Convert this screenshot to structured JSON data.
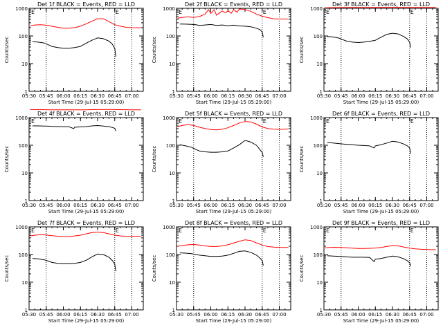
{
  "chart_data": [
    {
      "type": "line",
      "title": "Det 1f BLACK = Events, RED = LLD",
      "ylabel": "Counts/sec",
      "xlabel": "Start Time (29-Jul-15 05:29:00)",
      "yscale": "log",
      "ylim": [
        1,
        1000
      ],
      "ytick_labels": [
        "1",
        "10",
        "100",
        "1000"
      ],
      "xlim": [
        "05:30",
        "07:10"
      ],
      "xtick_labels": [
        "05:30",
        "05:45",
        "06:00",
        "06:15",
        "06:30",
        "06:45",
        "07:00"
      ],
      "marker_label": "E",
      "markers": [
        "05:45",
        "06:45",
        "07:00"
      ],
      "series": [
        {
          "color": "#ff0000",
          "x": [
            "05:31",
            "05:35",
            "05:40",
            "05:45",
            "05:50",
            "05:55",
            "06:00",
            "06:05",
            "06:10",
            "06:15",
            "06:20",
            "06:25",
            "06:30",
            "06:35",
            "06:40",
            "06:45",
            "06:50",
            "06:55",
            "07:00",
            "07:05",
            "07:08"
          ],
          "y": [
            230,
            250,
            255,
            245,
            225,
            205,
            190,
            190,
            200,
            225,
            275,
            340,
            420,
            420,
            330,
            255,
            225,
            205,
            200,
            198,
            198
          ]
        },
        {
          "color": "#000000",
          "x": [
            "05:33",
            "05:38",
            "05:43",
            "05:47",
            "05:50",
            "05:55",
            "06:00",
            "06:05",
            "06:10",
            "06:15",
            "06:20",
            "06:25",
            "06:30",
            "06:35",
            "06:40",
            "06:43",
            "06:45",
            "06:46"
          ],
          "y": [
            62,
            60,
            56,
            48,
            42,
            38,
            36,
            36,
            38,
            42,
            55,
            70,
            85,
            80,
            65,
            50,
            35,
            18
          ]
        }
      ]
    },
    {
      "type": "line",
      "title": "Det 2f BLACK = Events, RED = LLD",
      "ylabel": "Counts/sec",
      "xlabel": "Start Time (29-Jul-15 05:29:00)",
      "yscale": "log",
      "ylim": [
        1,
        1000
      ],
      "ytick_labels": [
        "1",
        "10",
        "100",
        "1000"
      ],
      "xlim": [
        "05:30",
        "07:10"
      ],
      "xtick_labels": [
        "05:30",
        "05:45",
        "06:00",
        "06:15",
        "06:30",
        "06:45",
        "07:00"
      ],
      "marker_label": "E",
      "markers": [
        "05:45",
        "06:45",
        "07:00"
      ],
      "series": [
        {
          "color": "#ff0000",
          "x": [
            "05:31",
            "05:35",
            "05:40",
            "05:45",
            "05:50",
            "05:55",
            "05:58",
            "06:00",
            "06:03",
            "06:05",
            "06:08",
            "06:10",
            "06:13",
            "06:15",
            "06:18",
            "06:20",
            "06:23",
            "06:25",
            "06:30",
            "06:35",
            "06:40",
            "06:45",
            "06:50",
            "06:55",
            "07:00",
            "07:05",
            "07:08"
          ],
          "y": [
            440,
            470,
            490,
            470,
            500,
            620,
            900,
            650,
            900,
            560,
            700,
            800,
            680,
            820,
            660,
            900,
            720,
            950,
            900,
            780,
            620,
            520,
            460,
            420,
            410,
            410,
            410
          ]
        },
        {
          "color": "#000000",
          "x": [
            "05:33",
            "05:38",
            "05:43",
            "05:47",
            "05:50",
            "05:55",
            "06:00",
            "06:05",
            "06:10",
            "06:15",
            "06:20",
            "06:25",
            "06:30",
            "06:35",
            "06:40",
            "06:43",
            "06:45",
            "06:46"
          ],
          "y": [
            270,
            268,
            262,
            255,
            240,
            250,
            260,
            240,
            250,
            235,
            245,
            230,
            225,
            215,
            190,
            170,
            140,
            90
          ]
        }
      ]
    },
    {
      "type": "line",
      "title": "Det 3f BLACK = Events, RED = LLD",
      "ylabel": "Counts/sec",
      "xlabel": "Start Time (29-Jul-15 05:29:00)",
      "yscale": "log",
      "ylim": [
        1,
        1000
      ],
      "ytick_labels": [
        "1",
        "10",
        "100",
        "1000"
      ],
      "xlim": [
        "05:30",
        "07:10"
      ],
      "xtick_labels": [
        "05:30",
        "05:45",
        "06:00",
        "06:15",
        "06:30",
        "06:45",
        "07:00"
      ],
      "marker_label": "E",
      "markers": [
        "05:45",
        "06:45",
        "07:00"
      ],
      "series": [
        {
          "color": "#ff0000",
          "x": [
            "05:31",
            "05:40",
            "05:50",
            "06:00",
            "06:10",
            "06:20",
            "06:30",
            "06:40",
            "06:50",
            "07:00",
            "07:08"
          ],
          "y": [
            1050,
            1060,
            1070,
            1075,
            1080,
            1085,
            1085,
            1080,
            1075,
            1070,
            1065
          ]
        },
        {
          "color": "#000000",
          "x": [
            "05:33",
            "05:38",
            "05:43",
            "05:47",
            "05:50",
            "05:55",
            "06:00",
            "06:05",
            "06:10",
            "06:15",
            "06:20",
            "06:25",
            "06:30",
            "06:35",
            "06:40",
            "06:43",
            "06:45",
            "06:46"
          ],
          "y": [
            95,
            92,
            84,
            72,
            65,
            60,
            58,
            60,
            64,
            70,
            90,
            115,
            125,
            118,
            95,
            78,
            60,
            38
          ]
        }
      ]
    },
    {
      "type": "line",
      "title": "Det 4f BLACK = Events, RED = LLD",
      "ylabel": "Counts/sec",
      "xlabel": "Start Time (29-Jul-15 05:29:00)",
      "yscale": "log",
      "ylim": [
        1,
        1000
      ],
      "ytick_labels": [
        "1",
        "10",
        "100",
        "1000"
      ],
      "xlim": [
        "05:30",
        "07:10"
      ],
      "xtick_labels": [
        "05:30",
        "05:45",
        "06:00",
        "06:15",
        "06:30",
        "06:45",
        "07:00"
      ],
      "marker_label": "E",
      "markers": [],
      "series": [
        {
          "color": "#ff0000",
          "x": [
            "05:31",
            "05:40",
            "05:50",
            "06:00",
            "06:10",
            "06:20",
            "06:30",
            "06:40",
            "06:50",
            "07:00",
            "07:08"
          ],
          "y": [
            1950,
            1940,
            1920,
            1900,
            1900,
            1920,
            1950,
            1960,
            1940,
            1920,
            1900
          ]
        },
        {
          "color": "#000000",
          "x": [
            "05:33",
            "05:38",
            "05:43",
            "05:47",
            "05:50",
            "05:55",
            "06:00",
            "06:05",
            "06:09",
            "06:10",
            "06:15",
            "06:20",
            "06:25",
            "06:30",
            "06:35",
            "06:40",
            "06:43",
            "06:45",
            "06:46"
          ],
          "y": [
            500,
            500,
            495,
            490,
            480,
            470,
            470,
            465,
            400,
            450,
            460,
            470,
            500,
            515,
            495,
            470,
            440,
            410,
            330
          ]
        }
      ]
    },
    {
      "type": "line",
      "title": "Det 5f BLACK = Events, RED = LLD",
      "ylabel": "Counts/sec",
      "xlabel": "Start Time (29-Jul-15 05:29:00)",
      "yscale": "log",
      "ylim": [
        1,
        1000
      ],
      "ytick_labels": [
        "1",
        "10",
        "100",
        "1000"
      ],
      "xlim": [
        "05:30",
        "07:10"
      ],
      "xtick_labels": [
        "05:30",
        "05:45",
        "06:00",
        "06:15",
        "06:30",
        "06:45",
        "07:00"
      ],
      "marker_label": "E",
      "markers": [
        "05:45",
        "06:45",
        "07:00"
      ],
      "series": [
        {
          "color": "#ff0000",
          "x": [
            "05:31",
            "05:35",
            "05:40",
            "05:45",
            "05:50",
            "05:55",
            "06:00",
            "06:05",
            "06:10",
            "06:15",
            "06:20",
            "06:25",
            "06:30",
            "06:35",
            "06:40",
            "06:45",
            "06:50",
            "06:55",
            "07:00",
            "07:05",
            "07:08"
          ],
          "y": [
            470,
            520,
            560,
            520,
            450,
            400,
            370,
            360,
            380,
            430,
            520,
            640,
            720,
            700,
            580,
            460,
            400,
            380,
            375,
            380,
            390
          ]
        },
        {
          "color": "#000000",
          "x": [
            "05:33",
            "05:38",
            "05:43",
            "05:47",
            "05:50",
            "05:55",
            "06:00",
            "06:05",
            "06:10",
            "06:15",
            "06:20",
            "06:25",
            "06:30",
            "06:35",
            "06:40",
            "06:43",
            "06:45",
            "06:46"
          ],
          "y": [
            105,
            95,
            85,
            70,
            62,
            58,
            56,
            56,
            58,
            62,
            80,
            105,
            150,
            130,
            100,
            70,
            55,
            38
          ]
        }
      ]
    },
    {
      "type": "line",
      "title": "Det 6f BLACK = Events, RED = LLD",
      "ylabel": "Counts/sec",
      "xlabel": "Start Time (29-Jul-15 05:29:00)",
      "yscale": "log",
      "ylim": [
        1,
        1000
      ],
      "ytick_labels": [
        "1",
        "10",
        "100",
        "1000"
      ],
      "xlim": [
        "05:30",
        "07:10"
      ],
      "xtick_labels": [
        "05:30",
        "05:45",
        "06:00",
        "06:15",
        "06:30",
        "06:45",
        "07:00"
      ],
      "marker_label": "E",
      "markers": [
        "05:45",
        "06:45",
        "07:00"
      ],
      "series": [
        {
          "color": "#000000",
          "x": [
            "05:33",
            "05:38",
            "05:43",
            "05:47",
            "05:50",
            "05:55",
            "06:00",
            "06:05",
            "06:10",
            "06:14",
            "06:15",
            "06:20",
            "06:25",
            "06:30",
            "06:35",
            "06:40",
            "06:43",
            "06:45",
            "06:46"
          ],
          "y": [
            125,
            120,
            115,
            110,
            108,
            105,
            100,
            98,
            95,
            80,
            95,
            105,
            120,
            140,
            130,
            110,
            95,
            80,
            50
          ]
        }
      ]
    },
    {
      "type": "line",
      "title": "Det 7f BLACK = Events, RED = LLD",
      "ylabel": "Counts/sec",
      "xlabel": "Start Time (29-Jul-15 05:29:00)",
      "yscale": "log",
      "ylim": [
        1,
        1000
      ],
      "ytick_labels": [
        "1",
        "10",
        "100",
        "1000"
      ],
      "xlim": [
        "05:30",
        "07:10"
      ],
      "xtick_labels": [
        "05:30",
        "05:45",
        "06:00",
        "06:15",
        "06:30",
        "06:45",
        "07:00"
      ],
      "marker_label": "E",
      "markers": [
        "05:45",
        "06:45",
        "07:00"
      ],
      "series": [
        {
          "color": "#ff0000",
          "x": [
            "05:31",
            "05:35",
            "05:40",
            "05:45",
            "05:50",
            "05:55",
            "06:00",
            "06:05",
            "06:10",
            "06:15",
            "06:20",
            "06:25",
            "06:30",
            "06:35",
            "06:40",
            "06:45",
            "06:50",
            "06:55",
            "07:00",
            "07:05",
            "07:08"
          ],
          "y": [
            470,
            500,
            520,
            510,
            480,
            460,
            440,
            450,
            470,
            500,
            560,
            620,
            650,
            620,
            560,
            500,
            470,
            460,
            460,
            460,
            460
          ]
        },
        {
          "color": "#000000",
          "x": [
            "05:33",
            "05:38",
            "05:43",
            "05:47",
            "05:50",
            "05:55",
            "06:00",
            "06:05",
            "06:10",
            "06:15",
            "06:20",
            "06:25",
            "06:30",
            "06:35",
            "06:40",
            "06:43",
            "06:45",
            "06:46"
          ],
          "y": [
            72,
            70,
            65,
            58,
            52,
            48,
            47,
            47,
            48,
            52,
            62,
            82,
            105,
            100,
            80,
            60,
            45,
            25
          ]
        }
      ]
    },
    {
      "type": "line",
      "title": "Det 8f BLACK = Events, RED = LLD",
      "ylabel": "Counts/sec",
      "xlabel": "Start Time (29-Jul-15 05:29:00)",
      "yscale": "log",
      "ylim": [
        1,
        1000
      ],
      "ytick_labels": [
        "1",
        "10",
        "100",
        "1000"
      ],
      "xlim": [
        "05:30",
        "07:10"
      ],
      "xtick_labels": [
        "05:30",
        "05:45",
        "06:00",
        "06:15",
        "06:30",
        "06:45",
        "07:00"
      ],
      "marker_label": "E",
      "markers": [
        "05:45",
        "06:45",
        "07:00"
      ],
      "series": [
        {
          "color": "#ff0000",
          "x": [
            "05:31",
            "05:35",
            "05:40",
            "05:45",
            "05:50",
            "05:55",
            "06:00",
            "06:05",
            "06:10",
            "06:15",
            "06:20",
            "06:25",
            "06:30",
            "06:35",
            "06:40",
            "06:45",
            "06:50",
            "06:55",
            "07:00",
            "07:05",
            "07:08"
          ],
          "y": [
            200,
            210,
            225,
            230,
            220,
            205,
            195,
            195,
            205,
            225,
            260,
            300,
            340,
            320,
            265,
            220,
            195,
            185,
            180,
            180,
            180
          ]
        },
        {
          "color": "#000000",
          "x": [
            "05:33",
            "05:38",
            "05:43",
            "05:47",
            "05:50",
            "05:55",
            "06:00",
            "06:05",
            "06:10",
            "06:15",
            "06:20",
            "06:25",
            "06:30",
            "06:35",
            "06:40",
            "06:43",
            "06:45",
            "06:46"
          ],
          "y": [
            115,
            112,
            108,
            100,
            95,
            90,
            85,
            85,
            88,
            95,
            110,
            130,
            135,
            120,
            95,
            75,
            60,
            40
          ]
        }
      ]
    },
    {
      "type": "line",
      "title": "Det 9f BLACK = Events, RED = LLD",
      "ylabel": "Counts/sec",
      "xlabel": "Start Time (29-Jul-15 05:29:00)",
      "yscale": "log",
      "ylim": [
        1,
        1000
      ],
      "ytick_labels": [
        "1",
        "10",
        "100",
        "1000"
      ],
      "xlim": [
        "05:30",
        "07:10"
      ],
      "xtick_labels": [
        "05:30",
        "05:45",
        "06:00",
        "06:15",
        "06:30",
        "06:45",
        "07:00"
      ],
      "marker_label": "E",
      "markers": [
        "05:45",
        "06:45",
        "07:00"
      ],
      "series": [
        {
          "color": "#ff0000",
          "x": [
            "05:31",
            "05:35",
            "05:40",
            "05:45",
            "05:50",
            "05:55",
            "06:00",
            "06:05",
            "06:10",
            "06:15",
            "06:20",
            "06:25",
            "06:30",
            "06:35",
            "06:40",
            "06:45",
            "06:50",
            "06:55",
            "07:00",
            "07:05",
            "07:08"
          ],
          "y": [
            175,
            180,
            182,
            180,
            175,
            170,
            165,
            165,
            168,
            172,
            180,
            195,
            210,
            205,
            185,
            170,
            160,
            155,
            152,
            150,
            150
          ]
        },
        {
          "color": "#000000",
          "x": [
            "05:33",
            "05:38",
            "05:43",
            "05:47",
            "05:50",
            "05:55",
            "06:00",
            "06:05",
            "06:10",
            "06:14",
            "06:15",
            "06:20",
            "06:25",
            "06:30",
            "06:35",
            "06:40",
            "06:43",
            "06:45",
            "06:46"
          ],
          "y": [
            90,
            88,
            86,
            84,
            82,
            80,
            80,
            80,
            78,
            55,
            68,
            72,
            80,
            88,
            82,
            70,
            60,
            50,
            38
          ]
        }
      ]
    }
  ]
}
